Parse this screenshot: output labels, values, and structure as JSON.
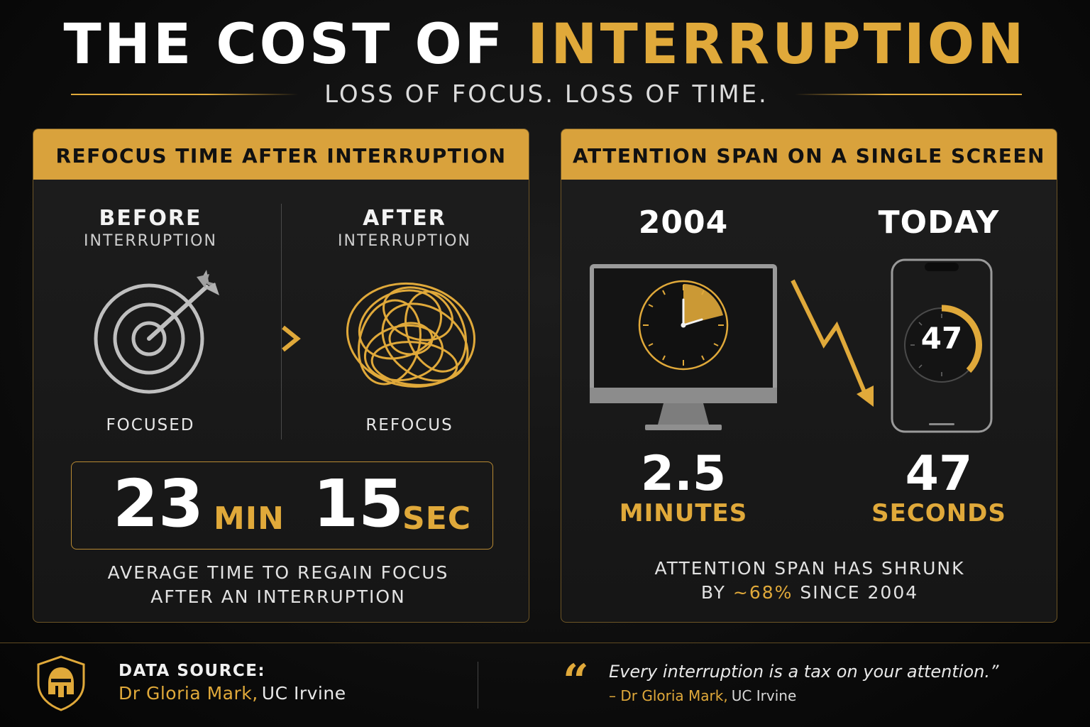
{
  "header": {
    "title_white": "THE COST OF",
    "title_gold": "INTERRUPTION",
    "subtitle": "LOSS OF FOCUS. LOSS OF TIME."
  },
  "left_panel": {
    "heading": "REFOCUS TIME AFTER INTERRUPTION",
    "before": {
      "title": "BEFORE",
      "sub": "INTERRUPTION",
      "caption": "FOCUSED",
      "icon": "target-icon"
    },
    "after": {
      "title": "AFTER",
      "sub": "INTERRUPTION",
      "caption": "REFOCUS",
      "icon": "tangle-icon"
    },
    "time": {
      "minutes": "23",
      "min_unit": "MIN",
      "seconds": "15",
      "sec_unit": "SEC"
    },
    "caption_line1": "AVERAGE TIME TO REGAIN FOCUS",
    "caption_line2": "AFTER AN INTERRUPTION"
  },
  "right_panel": {
    "heading": "ATTENTION SPAN ON A SINGLE SCREEN",
    "past": {
      "year": "2004",
      "value": "2.5",
      "unit": "MINUTES",
      "icon": "monitor-clock-icon"
    },
    "now": {
      "label": "TODAY",
      "value": "47",
      "unit": "SECONDS",
      "phone_value": "47",
      "icon": "phone-timer-icon"
    },
    "caption_line1": "ATTENTION SPAN HAS SHRUNK",
    "caption_prefix": "BY",
    "caption_highlight": "~68%",
    "caption_suffix": "SINCE 2004"
  },
  "footer": {
    "source_label": "DATA SOURCE:",
    "source_name": "Dr Gloria Mark,",
    "source_inst": "UC Irvine",
    "quote": "Every interruption is a tax on your attention.”",
    "quote_by": "– Dr Gloria Mark,",
    "quote_inst": "UC Irvine",
    "logo_icon": "spartan-helmet-shield-icon"
  },
  "colors": {
    "gold": "#e0a93a",
    "header_bar": "#d9a23c",
    "background": "#0b0b0b"
  }
}
